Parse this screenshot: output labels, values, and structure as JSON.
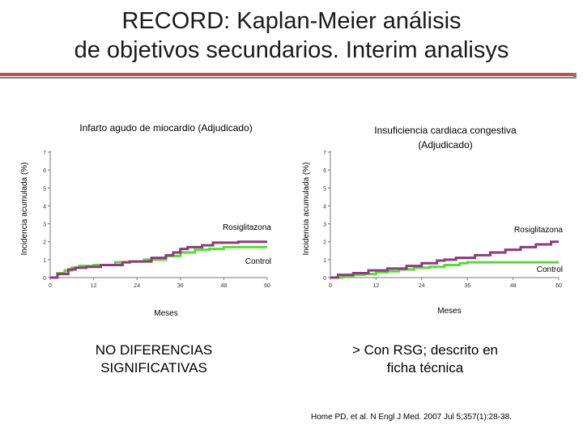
{
  "slide": {
    "title_line1": "RECORD: Kaplan-Meier análisis",
    "title_line2": "de objetivos secundarios. Interim analisys",
    "accent_color": "#c0504d",
    "left_note_line1": "NO DIFERENCIAS",
    "left_note_line2": "SIGNIFICATIVAS",
    "right_note_line1": "> Con RSG; descrito en",
    "right_note_line2": "ficha técnica",
    "citation": "Home PD, et al. N Engl J Med. 2007 Jul 5;357(1):28-38."
  },
  "chart_data": [
    {
      "type": "line",
      "title": "Infarto agudo de miocardio   (Adjudicado)",
      "xlabel": "Meses",
      "ylabel": "Incidencia acumulada (%)",
      "xticks": [
        0,
        12,
        24,
        36,
        48,
        60
      ],
      "yticks": [
        0,
        1,
        2,
        3,
        4,
        5,
        6,
        7
      ],
      "xlim": [
        0,
        60
      ],
      "ylim": [
        0,
        7
      ],
      "series": [
        {
          "name": "Rosiglitazona",
          "color": "#8e3a7e",
          "x": [
            0,
            2,
            5,
            7,
            10,
            14,
            20,
            22,
            28,
            32,
            34,
            36,
            38,
            42,
            45,
            52,
            60
          ],
          "y": [
            0,
            0.2,
            0.45,
            0.55,
            0.6,
            0.7,
            0.85,
            0.9,
            1.1,
            1.25,
            1.4,
            1.6,
            1.7,
            1.8,
            1.95,
            2.0,
            2.0
          ]
        },
        {
          "name": "Control",
          "color": "#55dd33",
          "x": [
            0,
            2,
            4,
            6,
            8,
            12,
            18,
            22,
            26,
            28,
            32,
            36,
            40,
            44,
            48,
            52,
            60
          ],
          "y": [
            0,
            0.25,
            0.4,
            0.55,
            0.65,
            0.7,
            0.85,
            0.9,
            1.0,
            1.0,
            1.2,
            1.4,
            1.55,
            1.6,
            1.7,
            1.7,
            1.7
          ]
        }
      ]
    },
    {
      "type": "line",
      "title": "Insuficiencia cardiaca congestiva (Adjudicado)",
      "xlabel": "Meses",
      "ylabel": "Incidencia acumulada (%)",
      "xticks": [
        0,
        12,
        24,
        36,
        48,
        60
      ],
      "yticks": [
        0,
        1,
        2,
        3,
        4,
        5,
        6,
        7
      ],
      "xlim": [
        0,
        60
      ],
      "ylim": [
        0,
        7
      ],
      "series": [
        {
          "name": "Rosiglitazona",
          "color": "#8e3a7e",
          "x": [
            0,
            2,
            6,
            10,
            15,
            20,
            24,
            28,
            30,
            33,
            38,
            42,
            46,
            50,
            54,
            58,
            60
          ],
          "y": [
            0,
            0.15,
            0.25,
            0.4,
            0.5,
            0.65,
            0.8,
            0.95,
            1.0,
            1.1,
            1.25,
            1.4,
            1.55,
            1.7,
            1.85,
            2.0,
            2.0
          ]
        },
        {
          "name": "Control",
          "color": "#55dd33",
          "x": [
            0,
            3,
            6,
            9,
            12,
            15,
            18,
            22,
            26,
            30,
            34,
            36,
            48,
            60
          ],
          "y": [
            0,
            0.1,
            0.15,
            0.2,
            0.3,
            0.35,
            0.45,
            0.55,
            0.6,
            0.7,
            0.8,
            0.85,
            0.85,
            0.85
          ]
        }
      ]
    }
  ]
}
